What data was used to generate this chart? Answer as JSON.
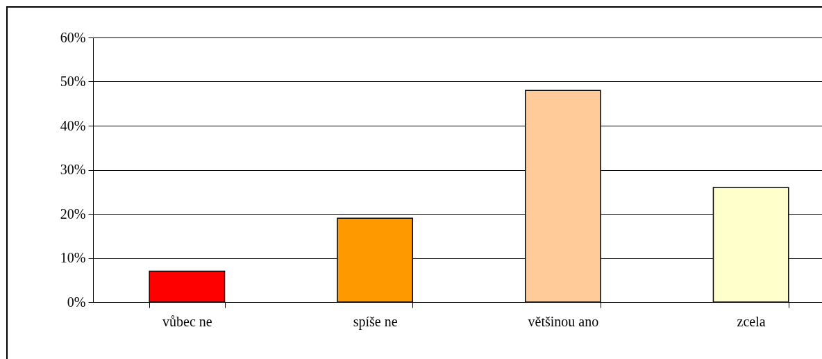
{
  "chart_data": {
    "type": "bar",
    "categories": [
      "vůbec ne",
      "spíše ne",
      "většinou ano",
      "zcela"
    ],
    "values": [
      7,
      19,
      48,
      26
    ],
    "colors": [
      "#ff0000",
      "#ff9900",
      "#ffcc99",
      "#ffffcc"
    ],
    "ylim": [
      0,
      60
    ],
    "yticks": [
      {
        "value": 0,
        "label": "0%"
      },
      {
        "value": 10,
        "label": "10%"
      },
      {
        "value": 20,
        "label": "20%"
      },
      {
        "value": 30,
        "label": "30%"
      },
      {
        "value": 40,
        "label": "40%"
      },
      {
        "value": 50,
        "label": "50%"
      },
      {
        "value": 60,
        "label": "60%"
      }
    ],
    "grid": "y",
    "legend": false
  }
}
